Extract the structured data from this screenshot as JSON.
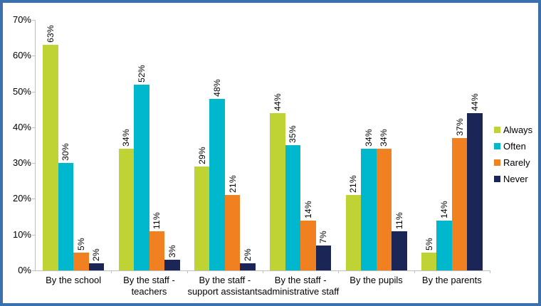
{
  "frame": {
    "border_color": "#3C70AD",
    "background_color": "#FFFFFF"
  },
  "chart_data": {
    "type": "bar",
    "title": "",
    "xlabel": "",
    "ylabel": "",
    "ylim": [
      0,
      70
    ],
    "y_tick_labels": [
      "0%",
      "10%",
      "20%",
      "30%",
      "40%",
      "50%",
      "60%",
      "70%"
    ],
    "grid": false,
    "legend_position": "right",
    "value_suffix": "%",
    "axis_color": "#BFBFBF",
    "text_color": "#000000",
    "categories": [
      "By the school",
      "By the staff -\nteachers",
      "By the staff -\nsupport assistants",
      "By the staff -\nadministrative staff",
      "By the pupils",
      "By the parents"
    ],
    "series": [
      {
        "name": "Always",
        "color": "#BFD434",
        "values": [
          63,
          34,
          29,
          44,
          21,
          5
        ]
      },
      {
        "name": "Often",
        "color": "#00B8CE",
        "values": [
          30,
          52,
          48,
          35,
          34,
          14
        ]
      },
      {
        "name": "Rarely",
        "color": "#F08020",
        "values": [
          5,
          11,
          21,
          14,
          34,
          37
        ]
      },
      {
        "name": "Never",
        "color": "#1B2656",
        "values": [
          2,
          3,
          2,
          7,
          11,
          44
        ]
      }
    ]
  }
}
